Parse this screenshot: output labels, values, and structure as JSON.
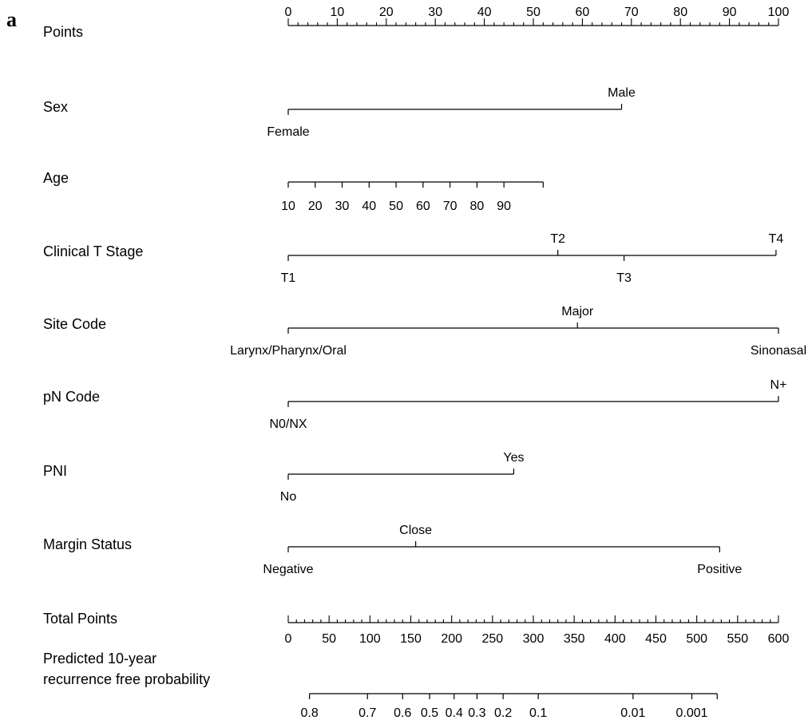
{
  "panel_label": "a",
  "chart_data": {
    "type": "nomogram",
    "title": "",
    "rows": [
      {
        "name": "Points",
        "kind": "scale",
        "start": 0,
        "end": 100,
        "major_step": 10,
        "minor_step": 2,
        "label_values": [
          0,
          10,
          20,
          30,
          40,
          50,
          60,
          70,
          80,
          90,
          100
        ],
        "labels_position": "above"
      },
      {
        "name": "Sex",
        "kind": "categorical",
        "levels": [
          {
            "label": "Female",
            "points": 0,
            "label_position": "below"
          },
          {
            "label": "Male",
            "points": 68,
            "label_position": "above"
          }
        ]
      },
      {
        "name": "Age",
        "kind": "continuous",
        "levels": [
          {
            "label": "10",
            "points": 0
          },
          {
            "label": "20",
            "points": 5.5
          },
          {
            "label": "30",
            "points": 11
          },
          {
            "label": "40",
            "points": 16.5
          },
          {
            "label": "50",
            "points": 22
          },
          {
            "label": "60",
            "points": 27.5
          },
          {
            "label": "70",
            "points": 33
          },
          {
            "label": "80",
            "points": 38.5
          },
          {
            "label": "90",
            "points": 44
          }
        ],
        "axis_end_points": 52,
        "labels_position": "below"
      },
      {
        "name": "Clinical T Stage",
        "kind": "categorical",
        "levels": [
          {
            "label": "T1",
            "points": 0,
            "label_position": "below"
          },
          {
            "label": "T2",
            "points": 55,
            "label_position": "above"
          },
          {
            "label": "T3",
            "points": 68.5,
            "label_position": "below"
          },
          {
            "label": "T4",
            "points": 99.5,
            "label_position": "above"
          }
        ]
      },
      {
        "name": "Site Code",
        "kind": "categorical",
        "levels": [
          {
            "label": "Larynx/Pharynx/Oral",
            "points": 0,
            "label_position": "below"
          },
          {
            "label": "Major",
            "points": 59,
            "label_position": "above"
          },
          {
            "label": "Sinonasal",
            "points": 100,
            "label_position": "below"
          }
        ]
      },
      {
        "name": "pN Code",
        "kind": "categorical",
        "levels": [
          {
            "label": "N0/NX",
            "points": 0,
            "label_position": "below"
          },
          {
            "label": "N+",
            "points": 100,
            "label_position": "above"
          }
        ]
      },
      {
        "name": "PNI",
        "kind": "categorical",
        "levels": [
          {
            "label": "No",
            "points": 0,
            "label_position": "below"
          },
          {
            "label": "Yes",
            "points": 46,
            "label_position": "above"
          }
        ]
      },
      {
        "name": "Margin Status",
        "kind": "categorical",
        "levels": [
          {
            "label": "Negative",
            "points": 0,
            "label_position": "below"
          },
          {
            "label": "Close",
            "points": 26,
            "label_position": "above"
          },
          {
            "label": "Positive",
            "points": 88,
            "label_position": "below"
          }
        ]
      },
      {
        "name": "Total Points",
        "kind": "scale",
        "start": 0,
        "end": 600,
        "major_step": 50,
        "minor_step": 10,
        "label_values": [
          0,
          50,
          100,
          150,
          200,
          250,
          300,
          350,
          400,
          450,
          500,
          550,
          600
        ],
        "labels_position": "below"
      },
      {
        "name": "Predicted 10-year\nrecurrence free probability",
        "kind": "probability",
        "levels": [
          {
            "label": "0.8",
            "total_points": 26
          },
          {
            "label": "0.7",
            "total_points": 97
          },
          {
            "label": "0.6",
            "total_points": 140
          },
          {
            "label": "0.5",
            "total_points": 173
          },
          {
            "label": "0.4",
            "total_points": 203
          },
          {
            "label": "0.3",
            "total_points": 231
          },
          {
            "label": "0.2",
            "total_points": 263
          },
          {
            "label": "0.1",
            "total_points": 306
          },
          {
            "label": "0.01",
            "total_points": 422
          },
          {
            "label": "0.001",
            "total_points": 494
          }
        ],
        "axis_range_total_points": [
          26,
          525
        ],
        "labels_position": "below"
      }
    ]
  }
}
